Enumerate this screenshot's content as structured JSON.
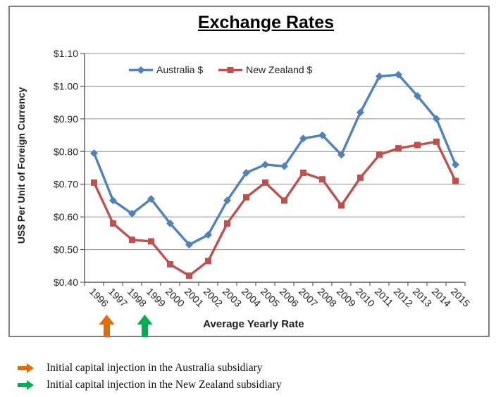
{
  "chart_data": {
    "type": "line",
    "title": "Exchange Rates",
    "xlabel": "Average Yearly Rate",
    "ylabel": "US$ Per Unit of Foreign Currency",
    "categories": [
      "1996",
      "1997",
      "1998",
      "1999",
      "2000",
      "2001",
      "2002",
      "2003",
      "2004",
      "2005",
      "2006",
      "2007",
      "2008",
      "2009",
      "2010",
      "2011",
      "2012",
      "2013",
      "2014",
      "2015"
    ],
    "series": [
      {
        "name": "Australia $",
        "color": "#4F81BD",
        "marker": "diamond",
        "values": [
          0.795,
          0.65,
          0.61,
          0.655,
          0.58,
          0.515,
          0.545,
          0.65,
          0.735,
          0.76,
          0.755,
          0.84,
          0.85,
          0.79,
          0.92,
          1.03,
          1.035,
          0.97,
          0.9,
          0.76
        ]
      },
      {
        "name": "New Zealand $",
        "color": "#C0504D",
        "marker": "square",
        "values": [
          0.705,
          0.58,
          0.53,
          0.525,
          0.455,
          0.42,
          0.465,
          0.58,
          0.66,
          0.705,
          0.65,
          0.735,
          0.715,
          0.635,
          0.72,
          0.79,
          0.81,
          0.82,
          0.83,
          0.71
        ]
      }
    ],
    "ylim": [
      0.4,
      1.1
    ],
    "y_ticks": [
      {
        "value": 0.4,
        "label": "$0.40"
      },
      {
        "value": 0.5,
        "label": "$0.50"
      },
      {
        "value": 0.6,
        "label": "$0.60"
      },
      {
        "value": 0.7,
        "label": "$0.70"
      },
      {
        "value": 0.8,
        "label": "$0.80"
      },
      {
        "value": 0.9,
        "label": "$0.90"
      },
      {
        "value": 1.0,
        "label": "$1.00"
      },
      {
        "value": 1.1,
        "label": "$1.10"
      }
    ],
    "grid": true,
    "legend_position": "top-center",
    "annotations": [
      {
        "type": "up-arrow",
        "category": "1996",
        "color": "#E36C0A"
      },
      {
        "type": "up-arrow",
        "category": "1998",
        "color": "#00B050"
      }
    ]
  },
  "footer_legend": {
    "items": [
      {
        "arrow_color": "#E36C0A",
        "label": "Initial capital injection in the Australia subsidiary"
      },
      {
        "arrow_color": "#00B050",
        "label": "Initial capital injection in the New Zealand subsidiary"
      }
    ]
  }
}
